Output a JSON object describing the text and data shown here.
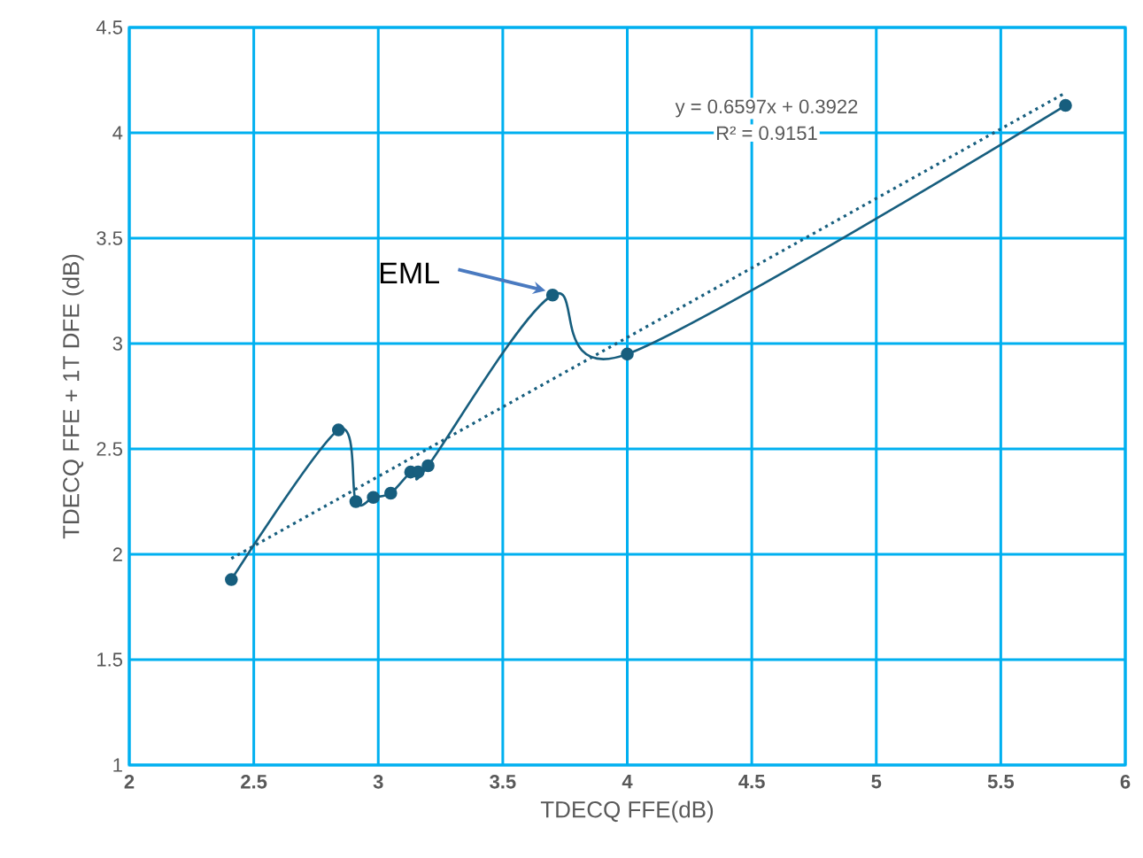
{
  "chart_data": {
    "type": "line",
    "xlabel": "TDECQ FFE(dB)",
    "ylabel": "TDECQ FFE + 1T DFE (dB)",
    "xlim": [
      2,
      6
    ],
    "xticks": [
      2,
      2.5,
      3,
      3.5,
      4,
      4.5,
      5,
      5.5,
      6
    ],
    "ylim": [
      1,
      4.5
    ],
    "yticks": [
      1,
      1.5,
      2,
      2.5,
      3,
      3.5,
      4,
      4.5
    ],
    "grid": true,
    "marker": "circle",
    "series": [
      {
        "color": "#175e7e",
        "x": [
          2.41,
          2.84,
          2.91,
          2.98,
          3.05,
          3.13,
          3.16,
          3.2,
          3.7,
          4.0,
          5.76
        ],
        "values": [
          1.88,
          2.59,
          2.25,
          2.27,
          2.29,
          2.39,
          2.39,
          2.42,
          3.23,
          2.95,
          4.13
        ]
      },
      {
        "type": "line",
        "color": "#175e7e",
        "marker": "none",
        "line_style": "dotted",
        "x": [
          2.41,
          5.76
        ],
        "values": [
          1.98,
          4.19
        ]
      }
    ],
    "annotations": [
      "y = 0.6597x + 0.3922",
      "R² = 0.9151",
      "EML"
    ]
  }
}
